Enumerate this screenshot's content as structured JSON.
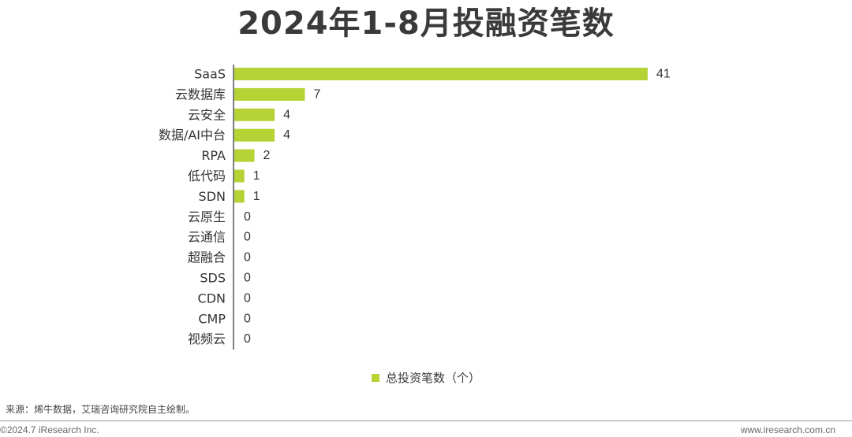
{
  "header": {
    "title": "2024年1-8月投融资笔数"
  },
  "chart_data": {
    "type": "bar",
    "orientation": "horizontal",
    "title": "2024年1-8月投融资笔数",
    "categories": [
      "SaaS",
      "云数据库",
      "云安全",
      "数据/AI中台",
      "RPA",
      "低代码",
      "SDN",
      "云原生",
      "云通信",
      "超融合",
      "SDS",
      "CDN",
      "CMP",
      "视频云"
    ],
    "series": [
      {
        "name": "总投资笔数（个）",
        "values": [
          41,
          7,
          4,
          4,
          2,
          1,
          1,
          0,
          0,
          0,
          0,
          0,
          0,
          0
        ],
        "color": "#b5d334"
      }
    ],
    "xlim": [
      0,
      41
    ],
    "grid": false,
    "legend_position": "bottom-center",
    "data_labels": true
  },
  "legend": {
    "label": "总投资笔数（个）",
    "color": "#b5d334"
  },
  "footer": {
    "source": "来源：烯牛数据，艾瑞咨询研究院自主绘制。",
    "copyright": "©2024.7 iResearch Inc.",
    "website": "www.iresearch.com.cn"
  }
}
